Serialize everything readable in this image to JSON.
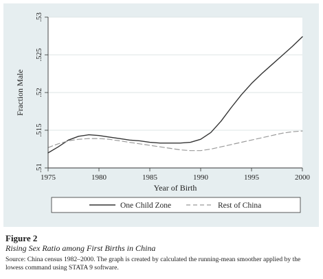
{
  "figure": {
    "number": "Figure 2",
    "title": "Rising Sex Ratio among First Births in China",
    "source": "Source: China census 1982–2000. The graph is created by calculated the running-mean smoother applied by the lowess command using STATA 9 software."
  },
  "chart_data": {
    "type": "line",
    "title": "",
    "xlabel": "Year of Birth",
    "ylabel": "Fraction Male",
    "xlim": [
      1975,
      2000
    ],
    "ylim": [
      0.51,
      0.53
    ],
    "x_ticks": [
      1975,
      1980,
      1985,
      1990,
      1995,
      2000
    ],
    "x_tick_labels": [
      "1975",
      "1980",
      "1985",
      "1990",
      "1995",
      "2000"
    ],
    "y_ticks": [
      0.51,
      0.515,
      0.52,
      0.525,
      0.53
    ],
    "y_tick_labels": [
      ".51",
      ".515",
      ".52",
      ".525",
      ".53"
    ],
    "grid": "horizontal",
    "legend_placement": "bottom",
    "series": [
      {
        "name": "One Child Zone",
        "style": "solid",
        "color": "#333333",
        "x": [
          1975,
          1976,
          1977,
          1978,
          1979,
          1980,
          1981,
          1982,
          1983,
          1984,
          1985,
          1986,
          1987,
          1988,
          1989,
          1990,
          1991,
          1992,
          1993,
          1994,
          1995,
          1996,
          1997,
          1998,
          1999,
          2000
        ],
        "y": [
          0.512,
          0.5128,
          0.5137,
          0.5142,
          0.5144,
          0.5143,
          0.5141,
          0.5139,
          0.5137,
          0.5136,
          0.5134,
          0.5133,
          0.5133,
          0.5133,
          0.5134,
          0.5138,
          0.5147,
          0.5162,
          0.518,
          0.5197,
          0.5212,
          0.5225,
          0.5237,
          0.5249,
          0.5261,
          0.5274
        ]
      },
      {
        "name": "Rest of China",
        "style": "dashed",
        "color": "#999999",
        "x": [
          1975,
          1976,
          1977,
          1978,
          1979,
          1980,
          1981,
          1982,
          1983,
          1984,
          1985,
          1986,
          1987,
          1988,
          1989,
          1990,
          1991,
          1992,
          1993,
          1994,
          1995,
          1996,
          1997,
          1998,
          1999,
          2000
        ],
        "y": [
          0.5127,
          0.5132,
          0.5136,
          0.5138,
          0.5139,
          0.5139,
          0.5138,
          0.5136,
          0.5134,
          0.5132,
          0.513,
          0.5128,
          0.5126,
          0.5124,
          0.5123,
          0.5123,
          0.5125,
          0.5128,
          0.5131,
          0.5134,
          0.5137,
          0.514,
          0.5143,
          0.5146,
          0.5148,
          0.5149
        ]
      }
    ]
  }
}
